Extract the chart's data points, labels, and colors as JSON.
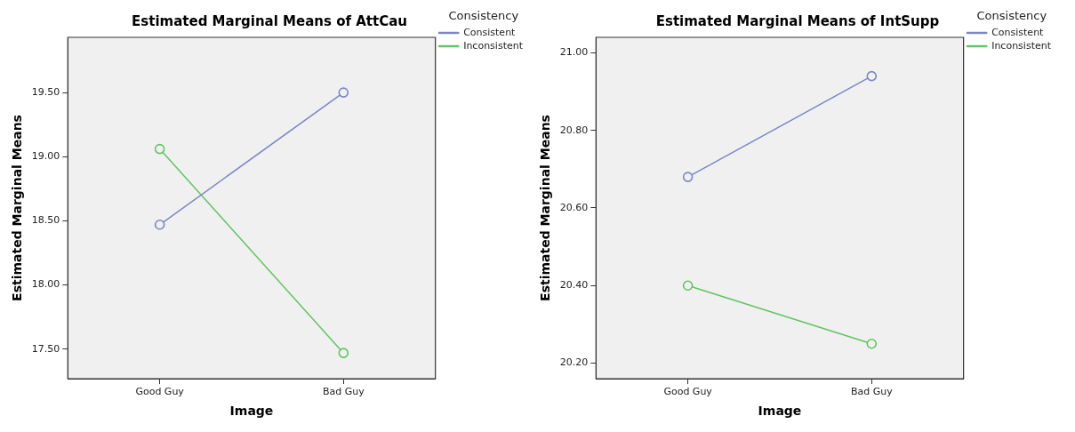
{
  "chart_data": [
    {
      "type": "line",
      "title": "Estimated Marginal Means of AttCau",
      "xlabel": "Image",
      "ylabel": "Estimated Marginal Means",
      "legend_title": "Consistency",
      "categories": [
        "Good Guy",
        "Bad Guy"
      ],
      "series": [
        {
          "name": "Consistent",
          "color": "#7b86c8",
          "values": [
            18.47,
            19.5
          ]
        },
        {
          "name": "Inconsistent",
          "color": "#62c462",
          "values": [
            19.06,
            17.47
          ]
        }
      ],
      "ylim": [
        17.27,
        19.93
      ],
      "yticks": [
        {
          "value": 17.5,
          "label": "17.50"
        },
        {
          "value": 18,
          "label": "18.00"
        },
        {
          "value": 18.5,
          "label": "18.50"
        },
        {
          "value": 19,
          "label": "19.00"
        },
        {
          "value": 19.5,
          "label": "19.50"
        }
      ],
      "grid": false,
      "legend": "right",
      "marker": "circle",
      "line_style": "solid"
    },
    {
      "type": "line",
      "title": "Estimated Marginal Means of IntSupp",
      "xlabel": "Image",
      "ylabel": "Estimated Marginal Means",
      "legend_title": "Consistency",
      "categories": [
        "Good Guy",
        "Bad Guy"
      ],
      "series": [
        {
          "name": "Consistent",
          "color": "#7b86c8",
          "values": [
            20.68,
            20.94
          ]
        },
        {
          "name": "Inconsistent",
          "color": "#62c462",
          "values": [
            20.4,
            20.25
          ]
        }
      ],
      "ylim": [
        20.16,
        21.04
      ],
      "yticks": [
        {
          "value": 20.2,
          "label": "20.20"
        },
        {
          "value": 20.4,
          "label": "20.40"
        },
        {
          "value": 20.6,
          "label": "20.60"
        },
        {
          "value": 20.8,
          "label": "20.80"
        },
        {
          "value": 21,
          "label": "21.00"
        }
      ],
      "grid": false,
      "legend": "right",
      "marker": "circle",
      "line_style": "solid"
    }
  ]
}
